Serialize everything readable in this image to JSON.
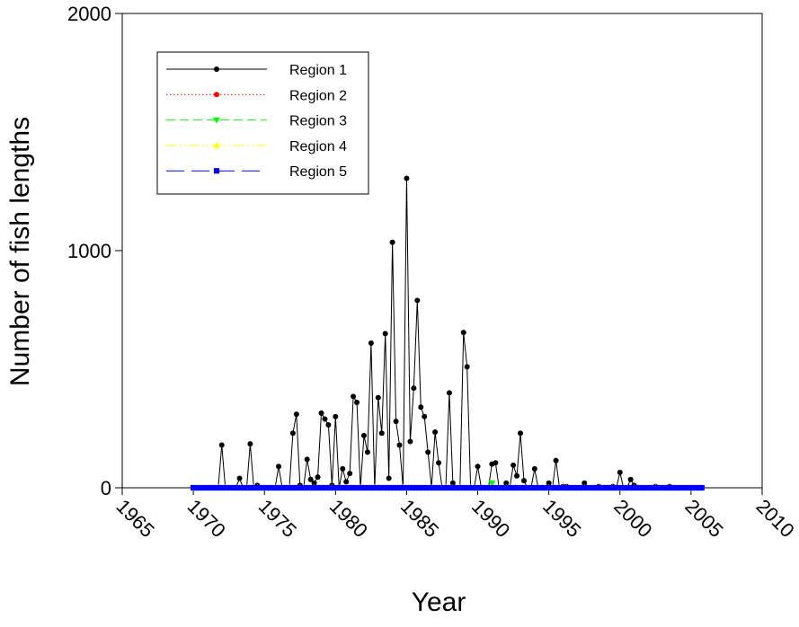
{
  "chart_data": {
    "type": "line",
    "xlabel": "Year",
    "ylabel": "Number of fish lengths",
    "xlim": [
      1965,
      2010
    ],
    "xticks": [
      1965,
      1970,
      1975,
      1980,
      1985,
      1990,
      1995,
      2000,
      2005,
      2010
    ],
    "ylim": [
      0,
      2000
    ],
    "yticks": [
      0,
      1000,
      2000
    ],
    "x": [
      1970,
      1970.25,
      1970.5,
      1970.75,
      1971,
      1971.25,
      1971.5,
      1971.75,
      1972,
      1972.25,
      1972.5,
      1972.75,
      1973,
      1973.25,
      1973.5,
      1973.75,
      1974,
      1974.25,
      1974.5,
      1974.75,
      1975,
      1975.25,
      1975.5,
      1975.75,
      1976,
      1976.25,
      1976.5,
      1976.75,
      1977,
      1977.25,
      1977.5,
      1977.75,
      1978,
      1978.25,
      1978.5,
      1978.75,
      1979,
      1979.25,
      1979.5,
      1979.75,
      1980,
      1980.25,
      1980.5,
      1980.75,
      1981,
      1981.25,
      1981.5,
      1981.75,
      1982,
      1982.25,
      1982.5,
      1982.75,
      1983,
      1983.25,
      1983.5,
      1983.75,
      1984,
      1984.25,
      1984.5,
      1984.75,
      1985,
      1985.25,
      1985.5,
      1985.75,
      1986,
      1986.25,
      1986.5,
      1986.75,
      1987,
      1987.25,
      1987.5,
      1987.75,
      1988,
      1988.25,
      1988.5,
      1988.75,
      1989,
      1989.25,
      1989.5,
      1989.75,
      1990,
      1990.25,
      1990.5,
      1990.75,
      1991,
      1991.25,
      1991.5,
      1991.75,
      1992,
      1992.25,
      1992.5,
      1992.75,
      1993,
      1993.25,
      1993.5,
      1993.75,
      1994,
      1994.25,
      1994.5,
      1994.75,
      1995,
      1995.25,
      1995.5,
      1995.75,
      1996,
      1996.25,
      1996.5,
      1996.75,
      1997,
      1997.25,
      1997.5,
      1997.75,
      1998,
      1998.25,
      1998.5,
      1998.75,
      1999,
      1999.25,
      1999.5,
      1999.75,
      2000,
      2000.25,
      2000.5,
      2000.75,
      2001,
      2001.25,
      2001.5,
      2001.75,
      2002,
      2002.25,
      2002.5,
      2002.75,
      2003,
      2003.25,
      2003.5,
      2003.75,
      2004,
      2004.25,
      2004.5,
      2004.75,
      2005,
      2005.25,
      2005.5,
      2005.75
    ],
    "series": [
      {
        "name": "Region 1",
        "color": "#000000",
        "marker": "circle",
        "dash": "solid",
        "values": [
          0,
          0,
          0,
          0,
          0,
          0,
          0,
          0,
          180,
          0,
          0,
          0,
          0,
          40,
          0,
          0,
          185,
          0,
          10,
          0,
          0,
          0,
          0,
          0,
          90,
          0,
          0,
          0,
          230,
          310,
          10,
          0,
          120,
          35,
          20,
          45,
          315,
          290,
          265,
          10,
          300,
          0,
          80,
          25,
          60,
          385,
          360,
          0,
          220,
          150,
          610,
          0,
          380,
          230,
          650,
          40,
          1035,
          280,
          180,
          0,
          1305,
          195,
          420,
          790,
          340,
          300,
          150,
          0,
          235,
          105,
          0,
          0,
          400,
          20,
          0,
          0,
          655,
          510,
          0,
          0,
          90,
          0,
          0,
          0,
          100,
          105,
          0,
          0,
          20,
          0,
          95,
          50,
          230,
          30,
          0,
          0,
          80,
          0,
          0,
          0,
          20,
          0,
          115,
          0,
          5,
          5,
          0,
          0,
          0,
          0,
          20,
          0,
          0,
          0,
          5,
          0,
          0,
          0,
          5,
          0,
          65,
          0,
          0,
          35,
          10,
          0,
          0,
          0,
          0,
          0,
          5,
          0,
          0,
          0,
          5,
          0,
          0,
          0,
          0,
          0,
          0,
          0,
          0,
          0
        ]
      },
      {
        "name": "Region 2",
        "color": "#ff0000",
        "marker": "circle",
        "dash": "dotted",
        "values": [
          0,
          0,
          0,
          0,
          0,
          0,
          0,
          0,
          0,
          0,
          0,
          0,
          0,
          0,
          0,
          0,
          0,
          0,
          0,
          0,
          0,
          0,
          0,
          0,
          0,
          0,
          0,
          0,
          0,
          0,
          0,
          0,
          0,
          0,
          0,
          0,
          0,
          0,
          0,
          0,
          0,
          0,
          0,
          0,
          0,
          0,
          0,
          0,
          0,
          0,
          0,
          0,
          0,
          0,
          0,
          0,
          0,
          0,
          0,
          0,
          0,
          0,
          0,
          0,
          0,
          0,
          0,
          0,
          0,
          0,
          0,
          0,
          0,
          0,
          0,
          0,
          0,
          0,
          0,
          0,
          0,
          0,
          0,
          0,
          0,
          0,
          0,
          0,
          0,
          0,
          0,
          0,
          0,
          0,
          0,
          0,
          0,
          0,
          0,
          0,
          0,
          0,
          0,
          0,
          0,
          0,
          0,
          0,
          0,
          0,
          0,
          0,
          0,
          0,
          0,
          0,
          0,
          0,
          0,
          0,
          0,
          0,
          0,
          0,
          0,
          0,
          0,
          0,
          0,
          0,
          0,
          0,
          0,
          0,
          0,
          0,
          0,
          0,
          0,
          0,
          0,
          0,
          0,
          0
        ]
      },
      {
        "name": "Region 3",
        "color": "#00ff00",
        "marker": "triangle-down",
        "dash": "dashed",
        "values": [
          0,
          0,
          0,
          0,
          0,
          0,
          0,
          0,
          0,
          0,
          0,
          0,
          0,
          0,
          0,
          0,
          0,
          0,
          0,
          0,
          0,
          0,
          0,
          0,
          0,
          0,
          0,
          0,
          0,
          0,
          0,
          0,
          0,
          0,
          0,
          0,
          0,
          0,
          0,
          0,
          0,
          0,
          0,
          0,
          0,
          0,
          0,
          0,
          0,
          0,
          0,
          0,
          0,
          0,
          0,
          0,
          0,
          0,
          0,
          0,
          0,
          0,
          0,
          0,
          0,
          0,
          0,
          0,
          0,
          0,
          0,
          0,
          0,
          0,
          0,
          0,
          0,
          0,
          0,
          0,
          0,
          0,
          0,
          0,
          20,
          0,
          0,
          0,
          0,
          0,
          0,
          0,
          0,
          0,
          0,
          0,
          0,
          0,
          0,
          0,
          0,
          0,
          0,
          0,
          0,
          0,
          0,
          0,
          0,
          0,
          0,
          0,
          0,
          0,
          0,
          0,
          0,
          0,
          0,
          0,
          0,
          0,
          0,
          0,
          0,
          0,
          0,
          0,
          0,
          0,
          0,
          0,
          0,
          0,
          0,
          0,
          0,
          0,
          0,
          0,
          0,
          0,
          0,
          0
        ]
      },
      {
        "name": "Region 4",
        "color": "#ffff00",
        "marker": "triangle-up",
        "dash": "dash-dot-dot",
        "values": [
          0,
          0,
          0,
          0,
          0,
          0,
          0,
          0,
          0,
          0,
          0,
          0,
          0,
          0,
          0,
          0,
          0,
          0,
          0,
          0,
          0,
          0,
          0,
          0,
          0,
          0,
          0,
          0,
          0,
          0,
          0,
          0,
          0,
          0,
          0,
          0,
          0,
          0,
          0,
          0,
          0,
          0,
          0,
          0,
          0,
          0,
          0,
          0,
          0,
          0,
          0,
          0,
          0,
          0,
          0,
          0,
          0,
          0,
          0,
          0,
          0,
          0,
          0,
          0,
          0,
          0,
          0,
          0,
          0,
          0,
          0,
          0,
          0,
          0,
          0,
          0,
          0,
          0,
          0,
          0,
          0,
          0,
          0,
          0,
          0,
          0,
          0,
          0,
          0,
          0,
          0,
          0,
          0,
          0,
          0,
          0,
          0,
          0,
          0,
          0,
          0,
          0,
          0,
          0,
          0,
          0,
          0,
          0,
          0,
          0,
          0,
          0,
          0,
          0,
          0,
          0,
          0,
          0,
          0,
          0,
          0,
          0,
          0,
          0,
          0,
          0,
          0,
          0,
          0,
          0,
          0,
          0,
          0,
          0,
          0,
          0,
          0,
          0,
          0,
          0,
          0,
          0,
          0,
          0
        ]
      },
      {
        "name": "Region 5",
        "color": "#0000ff",
        "marker": "square",
        "dash": "long-dash",
        "values": [
          0,
          0,
          0,
          0,
          0,
          0,
          0,
          0,
          0,
          0,
          0,
          0,
          0,
          0,
          0,
          0,
          0,
          0,
          0,
          0,
          0,
          0,
          0,
          0,
          0,
          0,
          0,
          0,
          0,
          0,
          0,
          0,
          0,
          0,
          0,
          0,
          0,
          0,
          0,
          0,
          0,
          0,
          0,
          0,
          0,
          0,
          0,
          0,
          0,
          0,
          0,
          0,
          0,
          0,
          0,
          0,
          0,
          0,
          0,
          0,
          0,
          0,
          0,
          0,
          0,
          0,
          0,
          0,
          0,
          0,
          0,
          0,
          0,
          0,
          0,
          0,
          0,
          0,
          0,
          0,
          0,
          0,
          0,
          0,
          0,
          0,
          0,
          0,
          0,
          0,
          0,
          0,
          0,
          0,
          0,
          0,
          0,
          0,
          0,
          0,
          0,
          0,
          0,
          0,
          0,
          0,
          0,
          0,
          0,
          0,
          0,
          0,
          0,
          0,
          0,
          0,
          0,
          0,
          0,
          0,
          0,
          0,
          0,
          0,
          0,
          0,
          0,
          0,
          0,
          0,
          0,
          0,
          0,
          0,
          0,
          0,
          0,
          0,
          0,
          0,
          0,
          0,
          0,
          0
        ]
      }
    ]
  }
}
